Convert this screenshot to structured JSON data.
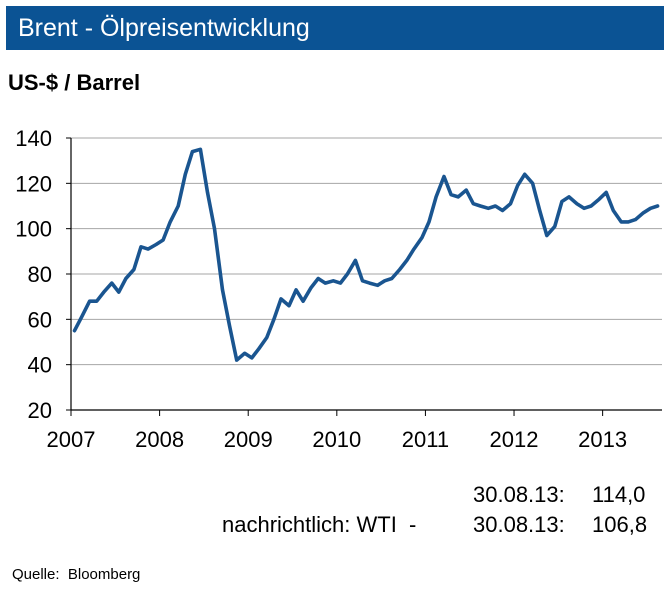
{
  "header": {
    "title": "Brent - Ölpreisentwicklung"
  },
  "unit_label": "US-$ / Barrel",
  "notes": {
    "brent_date": "30.08.13:",
    "brent_value": "114,0",
    "wti_label": "nachrichtlich: WTI  -",
    "wti_date": "30.08.13:",
    "wti_value": "106,8"
  },
  "source": "Quelle:  Bloomberg",
  "chart_data": {
    "type": "line",
    "title": "Brent - Ölpreisentwicklung",
    "ylabel": "US-$ / Barrel",
    "xlabel": "",
    "ylim": [
      20,
      140
    ],
    "y_ticks": [
      20,
      40,
      60,
      80,
      100,
      120,
      140
    ],
    "xlim": [
      2007.0,
      2013.67
    ],
    "x_ticks": [
      "2007",
      "2008",
      "2009",
      "2010",
      "2011",
      "2012",
      "2013"
    ],
    "grid": true,
    "line_color": "#1a5590",
    "series": [
      {
        "x": [
          2007.04,
          2007.12,
          2007.21,
          2007.29,
          2007.37,
          2007.46,
          2007.54,
          2007.62,
          2007.71,
          2007.79,
          2007.87,
          2007.96,
          2008.04,
          2008.12,
          2008.21,
          2008.29,
          2008.37,
          2008.46,
          2008.54,
          2008.62,
          2008.71,
          2008.79,
          2008.87,
          2008.96,
          2009.04,
          2009.12,
          2009.21,
          2009.29,
          2009.37,
          2009.46,
          2009.54,
          2009.62,
          2009.71,
          2009.79,
          2009.87,
          2009.96,
          2010.04,
          2010.12,
          2010.21,
          2010.29,
          2010.37,
          2010.46,
          2010.54,
          2010.62,
          2010.71,
          2010.79,
          2010.87,
          2010.96,
          2011.04,
          2011.12,
          2011.21,
          2011.29,
          2011.37,
          2011.46,
          2011.54,
          2011.62,
          2011.71,
          2011.79,
          2011.87,
          2011.96,
          2012.04,
          2012.12,
          2012.21,
          2012.29,
          2012.37,
          2012.46,
          2012.54,
          2012.62,
          2012.71,
          2012.79,
          2012.87,
          2012.96,
          2013.04,
          2013.12,
          2013.21,
          2013.29,
          2013.37,
          2013.46,
          2013.54,
          2013.62
        ],
        "y": [
          55,
          61,
          68,
          68,
          72,
          76,
          72,
          78,
          82,
          92,
          91,
          93,
          95,
          103,
          110,
          124,
          134,
          135,
          116,
          100,
          73,
          57,
          42,
          45,
          43,
          47,
          52,
          60,
          69,
          66,
          73,
          68,
          74,
          78,
          76,
          77,
          76,
          80,
          86,
          77,
          76,
          75,
          77,
          78,
          82,
          86,
          91,
          96,
          103,
          114,
          123,
          115,
          114,
          117,
          111,
          110,
          109,
          110,
          108,
          111,
          119,
          124,
          120,
          108,
          97,
          101,
          112,
          114,
          111,
          109,
          110,
          113,
          116,
          108,
          103,
          103,
          104,
          107,
          109,
          110
        ]
      }
    ]
  }
}
